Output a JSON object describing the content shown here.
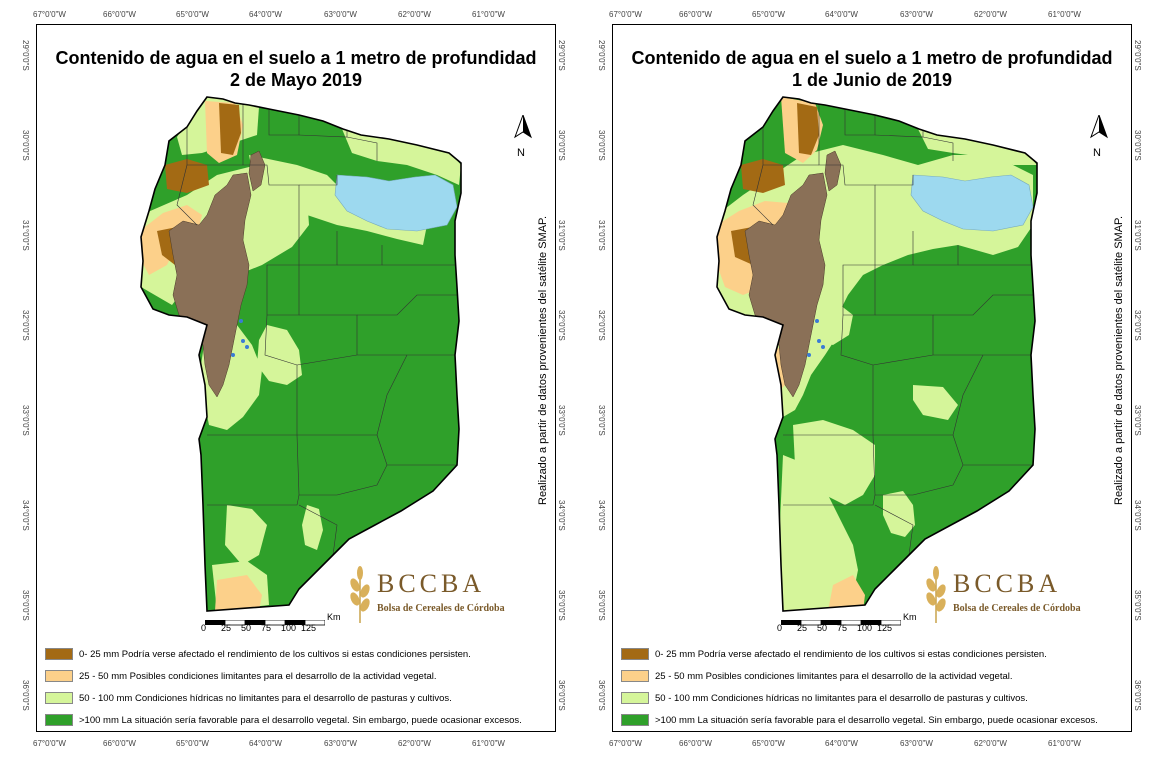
{
  "colors": {
    "dry": "#a36a14",
    "limiting": "#fcd08a",
    "moderate": "#d5f59a",
    "wet": "#2fa02a",
    "lake": "#9dd9ef",
    "sierra": "#8a7057"
  },
  "longitude_labels": [
    "67°0'0\"W",
    "66°0'0\"W",
    "65°0'0\"W",
    "64°0'0\"W",
    "63°0'0\"W",
    "62°0'0\"W",
    "61°0'0\"W"
  ],
  "latitude_labels": [
    "29°0'0\"S",
    "30°0'0\"S",
    "31°0'0\"S",
    "32°0'0\"S",
    "33°0'0\"S",
    "34°0'0\"S",
    "35°0'0\"S",
    "36°0'0\"S"
  ],
  "north_arrow": {
    "label": "N",
    "icon": "north-arrow-icon"
  },
  "scale": {
    "unit": "Km",
    "ticks": [
      "0",
      "25",
      "50",
      "75",
      "100",
      "125"
    ]
  },
  "source_note": "Realizado a partir de datos provenientes del satélite SMAP.",
  "logo": {
    "name": "BCCBA",
    "subtitle": "Bolsa de Cereales de Córdoba",
    "icon": "wheat-icon"
  },
  "legend": [
    {
      "label": "0- 25 mm Podría verse afectado el rendimiento de los cultivos si estas condiciones persisten.",
      "color_key": "dry"
    },
    {
      "label": "25 - 50 mm Posibles condiciones limitantes para el desarrollo de la actividad vegetal.",
      "color_key": "limiting"
    },
    {
      "label": "50 - 100 mm Condiciones hídricas no limitantes para el desarrollo de pasturas y cultivos.",
      "color_key": "moderate"
    },
    {
      "label": ">100 mm La situación sería favorable para el desarrollo vegetal. Sin embargo, puede ocasionar excesos.",
      "color_key": "wet"
    }
  ],
  "maps": [
    {
      "title_line1": "Contenido de agua en el suelo a 1 metro de profundidad",
      "title_line2": "2 de Mayo 2019"
    },
    {
      "title_line1": "Contenido de agua en el suelo a 1 metro de profundidad",
      "title_line2": "1 de Junio de 2019"
    }
  ]
}
